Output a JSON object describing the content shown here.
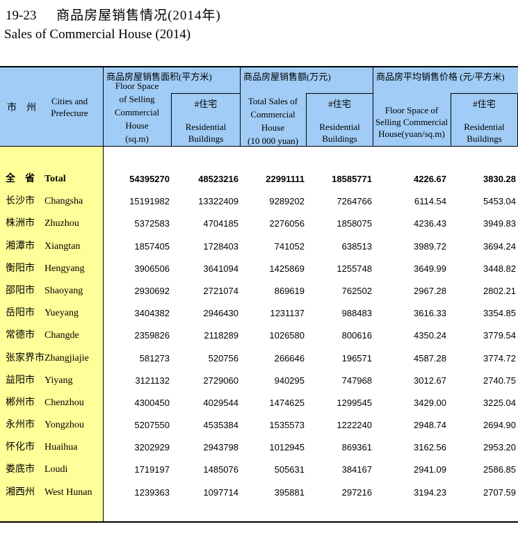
{
  "page": {
    "catalog_no": "19-23",
    "title_zh": "商品房屋销售情况(2014年)",
    "title_en": "Sales of Commercial House (2014)"
  },
  "colors": {
    "header_bg": "#A0CCF5",
    "stub_bg": "#FFFF99",
    "border": "#000000"
  },
  "header": {
    "stub_zh": "市　州",
    "stub_en": "Cities and\nPrefecture",
    "groups": [
      {
        "title": "商品房屋销售面积(平方米)",
        "col_en": "Floor Space\nof Selling\nCommercial\nHouse\n(sq.m)",
        "sub_zh": "#住宅",
        "sub_en": "Residential\nBuildings"
      },
      {
        "title": "商品房屋销售额(万元)",
        "col_en": "Total Sales of\nCommercial\nHouse\n(10 000 yuan)",
        "sub_zh": "#住宅",
        "sub_en": "Residential\nBuildings"
      },
      {
        "title": "商品房平均销售价格 (元/平方米)",
        "col_en": "Floor Space of\nSelling Commercial\nHouse(yuan/sq.m)",
        "sub_zh": "#住宅",
        "sub_en": "Residential\nBuildings"
      }
    ]
  },
  "table": {
    "rows": [
      {
        "zh": "全　省",
        "en": "Total",
        "bold": true,
        "v": [
          "54395270",
          "48523216",
          "22991111",
          "18585771",
          "4226.67",
          "3830.28"
        ]
      },
      {
        "zh": "长沙市",
        "en": "Changsha",
        "bold": false,
        "v": [
          "15191982",
          "13322409",
          "9289202",
          "7264766",
          "6114.54",
          "5453.04"
        ]
      },
      {
        "zh": "株洲市",
        "en": "Zhuzhou",
        "bold": false,
        "v": [
          "5372583",
          "4704185",
          "2276056",
          "1858075",
          "4236.43",
          "3949.83"
        ]
      },
      {
        "zh": "湘潭市",
        "en": "Xiangtan",
        "bold": false,
        "v": [
          "1857405",
          "1728403",
          "741052",
          "638513",
          "3989.72",
          "3694.24"
        ]
      },
      {
        "zh": "衡阳市",
        "en": "Hengyang",
        "bold": false,
        "v": [
          "3906506",
          "3641094",
          "1425869",
          "1255748",
          "3649.99",
          "3448.82"
        ]
      },
      {
        "zh": "邵阳市",
        "en": "Shaoyang",
        "bold": false,
        "v": [
          "2930692",
          "2721074",
          "869619",
          "762502",
          "2967.28",
          "2802.21"
        ]
      },
      {
        "zh": "岳阳市",
        "en": "Yueyang",
        "bold": false,
        "v": [
          "3404382",
          "2946430",
          "1231137",
          "988483",
          "3616.33",
          "3354.85"
        ]
      },
      {
        "zh": "常德市",
        "en": "Changde",
        "bold": false,
        "v": [
          "2359826",
          "2118289",
          "1026580",
          "800616",
          "4350.24",
          "3779.54"
        ]
      },
      {
        "zh": "张家界市",
        "en": "Zhangjiajie",
        "bold": false,
        "v": [
          "581273",
          "520756",
          "266646",
          "196571",
          "4587.28",
          "3774.72"
        ]
      },
      {
        "zh": "益阳市",
        "en": "Yiyang",
        "bold": false,
        "v": [
          "3121132",
          "2729060",
          "940295",
          "747968",
          "3012.67",
          "2740.75"
        ]
      },
      {
        "zh": "郴州市",
        "en": "Chenzhou",
        "bold": false,
        "v": [
          "4300450",
          "4029544",
          "1474625",
          "1299545",
          "3429.00",
          "3225.04"
        ]
      },
      {
        "zh": "永州市",
        "en": "Yongzhou",
        "bold": false,
        "v": [
          "5207550",
          "4535384",
          "1535573",
          "1222240",
          "2948.74",
          "2694.90"
        ]
      },
      {
        "zh": "怀化市",
        "en": "Huaihua",
        "bold": false,
        "v": [
          "3202929",
          "2943798",
          "1012945",
          "869361",
          "3162.56",
          "2953.20"
        ]
      },
      {
        "zh": "娄底市",
        "en": "Loudi",
        "bold": false,
        "v": [
          "1719197",
          "1485076",
          "505631",
          "384167",
          "2941.09",
          "2586.85"
        ]
      },
      {
        "zh": "湘西州",
        "en": "West Hunan",
        "bold": false,
        "v": [
          "1239363",
          "1097714",
          "395881",
          "297216",
          "3194.23",
          "2707.59"
        ]
      }
    ]
  }
}
